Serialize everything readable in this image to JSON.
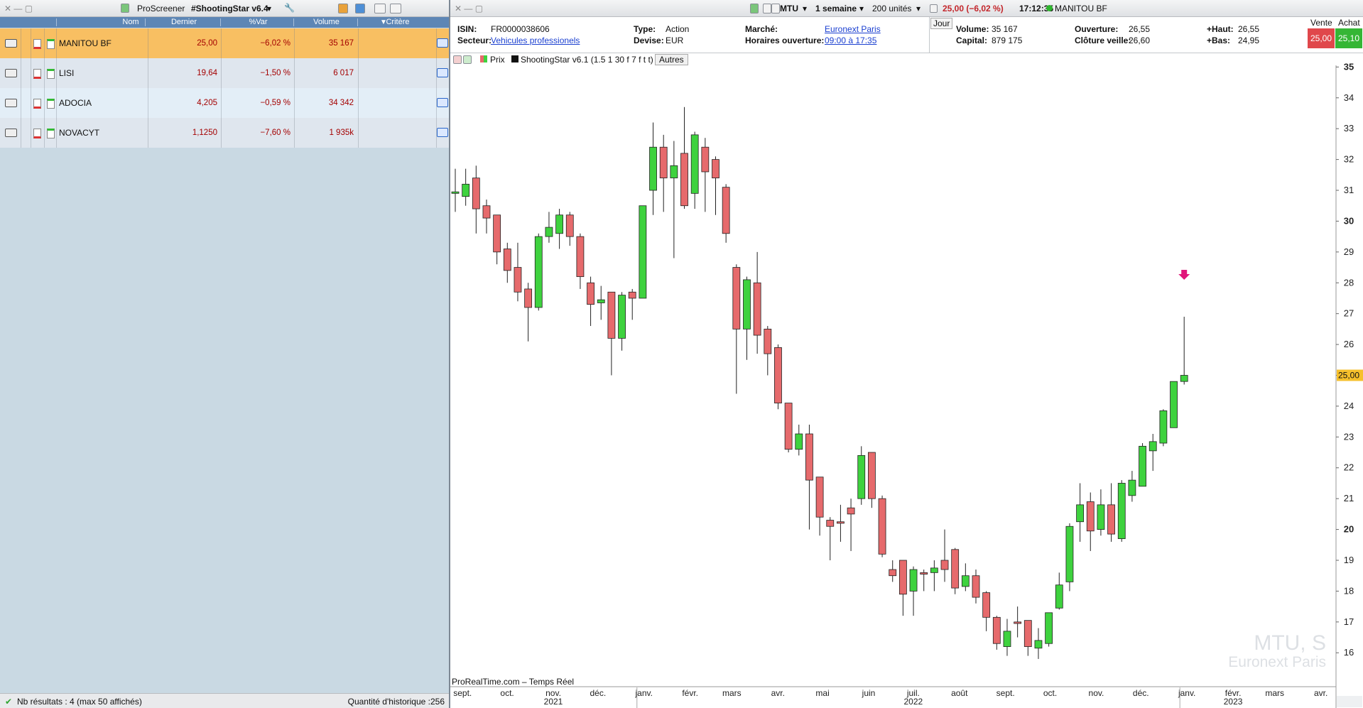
{
  "screener": {
    "toolbar": {
      "title": "ProScreener",
      "screen": "#ShootingStar v6.4"
    },
    "columns": [
      "Nom",
      "Dernier",
      "%Var",
      "Volume",
      "Critère"
    ],
    "rows": [
      [
        "MANITOU BF",
        "25,00",
        "−6,02 %",
        "35 167"
      ],
      [
        "LISI",
        "19,64",
        "−1,50 %",
        "6 017"
      ],
      [
        "ADOCIA",
        "4,205",
        "−0,59 %",
        "34 342"
      ],
      [
        "NOVACYT",
        "1,1250",
        "−7,60 %",
        "1 935k"
      ]
    ],
    "footer": {
      "results": "Nb résultats : 4 (max 50 affichés)",
      "history": "Quantité d'historique :256"
    }
  },
  "instrument": {
    "toolbar": {
      "ticker": "MTU",
      "period": "1 semaine",
      "units": "200 unités",
      "quote": "25,00 (−6,02 %)",
      "time": "17:12:35",
      "name": "MANITOU BF"
    },
    "isin_label": "ISIN:",
    "isin": "FR0000038606",
    "sector_label": "Secteur:",
    "sector": "Vehicules professionels",
    "type_label": "Type:",
    "type": "Action",
    "currency_label": "Devise:",
    "currency": "EUR",
    "market_label": "Marché:",
    "market": "Euronext Paris",
    "hours_label": "Horaires ouverture:",
    "hours": "09:00 à 17:35",
    "day_button": "Jour",
    "volume_label": "Volume:",
    "volume": "35 167",
    "capital_label": "Capital:",
    "capital": "879 175",
    "open_label": "Ouverture:",
    "open": "26,55",
    "prev_close_label": "Clôture veille:",
    "prev_close": "26,60",
    "high_label": "+Haut:",
    "high": "26,55",
    "low_label": "+Bas:",
    "low": "24,95",
    "sell_label": "Vente",
    "sell": "25,00",
    "buy_label": "Achat",
    "buy": "25,10",
    "legend": {
      "price": "Prix",
      "indicator": "ShootingStar v6.1 (1.5 1 30 f 7 f t t)",
      "others": "Autres"
    },
    "source": "ProRealTime.com – Temps Réel",
    "watermark": "MTU, S",
    "watermark_market": "Euronext Paris"
  },
  "chart_data": {
    "type": "candlestick",
    "up_color": "#3ed23e",
    "down_color": "#e66a6c",
    "ylim": [
      14.9,
      35.1
    ],
    "yticks": [
      16,
      17,
      18,
      19,
      20,
      21,
      22,
      23,
      24,
      25,
      26,
      27,
      28,
      29,
      30,
      31,
      32,
      33,
      34,
      35
    ],
    "last_price": {
      "value": 25,
      "label": "25,00"
    },
    "months": [
      "sept.",
      "oct.",
      "nov.",
      "déc.",
      "janv.",
      "févr.",
      "mars",
      "avr.",
      "mai",
      "juin",
      "juil.",
      "août",
      "sept.",
      "oct.",
      "nov.",
      "déc.",
      "janv.",
      "févr.",
      "mars",
      "avr."
    ],
    "years": [
      "2021",
      "2022",
      "2023"
    ],
    "ohlc": [
      [
        30.9,
        31.7,
        30.3,
        30.95
      ],
      [
        30.8,
        31.7,
        30.5,
        31.2
      ],
      [
        31.4,
        31.8,
        29.6,
        30.4
      ],
      [
        30.5,
        30.7,
        29.6,
        30.1
      ],
      [
        30.2,
        30.2,
        28.6,
        29.0
      ],
      [
        29.1,
        29.3,
        28.0,
        28.4
      ],
      [
        28.5,
        29.3,
        27.4,
        27.7
      ],
      [
        27.8,
        28.0,
        26.1,
        27.2
      ],
      [
        27.2,
        29.6,
        27.1,
        29.5
      ],
      [
        29.5,
        30.3,
        29.3,
        29.8
      ],
      [
        29.6,
        30.4,
        29.1,
        30.2
      ],
      [
        30.2,
        30.3,
        29.2,
        29.5
      ],
      [
        29.5,
        29.6,
        27.8,
        28.2
      ],
      [
        28.0,
        28.2,
        26.6,
        27.3
      ],
      [
        27.35,
        27.9,
        26.8,
        27.45
      ],
      [
        27.7,
        27.7,
        25.0,
        26.2
      ],
      [
        26.2,
        27.7,
        25.8,
        27.6
      ],
      [
        27.7,
        27.8,
        26.8,
        27.5
      ],
      [
        27.5,
        30.5,
        27.5,
        30.5
      ],
      [
        31.0,
        33.2,
        30.2,
        32.4
      ],
      [
        32.4,
        32.8,
        30.3,
        31.4
      ],
      [
        31.4,
        32.6,
        28.8,
        31.8
      ],
      [
        32.2,
        33.7,
        30.4,
        30.5
      ],
      [
        30.9,
        32.9,
        30.4,
        32.8
      ],
      [
        32.4,
        32.7,
        30.3,
        31.6
      ],
      [
        32.0,
        32.1,
        30.2,
        31.4
      ],
      [
        31.1,
        31.2,
        29.3,
        29.6
      ],
      [
        28.5,
        28.6,
        24.4,
        26.5
      ],
      [
        26.5,
        28.2,
        25.5,
        28.1
      ],
      [
        28.0,
        29.0,
        25.7,
        26.3
      ],
      [
        26.5,
        26.6,
        25.0,
        25.7
      ],
      [
        25.9,
        26.0,
        23.9,
        24.1
      ],
      [
        24.1,
        24.1,
        22.5,
        22.6
      ],
      [
        22.6,
        23.4,
        22.4,
        23.1
      ],
      [
        23.1,
        23.4,
        20.0,
        21.6
      ],
      [
        21.7,
        21.7,
        19.8,
        20.4
      ],
      [
        20.3,
        20.4,
        19.0,
        20.1
      ],
      [
        20.25,
        20.8,
        19.6,
        20.2
      ],
      [
        20.7,
        21.0,
        19.3,
        20.5
      ],
      [
        21.0,
        22.7,
        20.8,
        22.4
      ],
      [
        22.5,
        22.5,
        20.7,
        21.0
      ],
      [
        21.0,
        21.1,
        19.1,
        19.2
      ],
      [
        18.7,
        19.0,
        18.3,
        18.5
      ],
      [
        19.0,
        19.0,
        17.2,
        17.9
      ],
      [
        18.0,
        18.8,
        17.2,
        18.7
      ],
      [
        18.6,
        18.7,
        18.0,
        18.55
      ],
      [
        18.6,
        19.0,
        18.0,
        18.75
      ],
      [
        19.0,
        20.0,
        18.3,
        18.7
      ],
      [
        19.35,
        19.4,
        17.9,
        18.1
      ],
      [
        18.15,
        18.9,
        18.0,
        18.5
      ],
      [
        18.5,
        18.7,
        17.6,
        17.8
      ],
      [
        17.95,
        18.0,
        16.7,
        17.15
      ],
      [
        17.15,
        17.2,
        16.1,
        16.3
      ],
      [
        16.2,
        17.1,
        15.9,
        16.7
      ],
      [
        17.0,
        17.5,
        16.5,
        16.95
      ],
      [
        17.05,
        17.05,
        15.9,
        16.2
      ],
      [
        16.15,
        16.8,
        15.8,
        16.4
      ],
      [
        16.3,
        17.3,
        16.2,
        17.3
      ],
      [
        17.45,
        18.6,
        17.4,
        18.2
      ],
      [
        18.3,
        20.2,
        18.0,
        20.1
      ],
      [
        20.25,
        21.5,
        19.6,
        20.8
      ],
      [
        20.9,
        21.2,
        19.3,
        19.95
      ],
      [
        20.0,
        21.3,
        19.8,
        20.8
      ],
      [
        20.8,
        21.5,
        19.6,
        19.85
      ],
      [
        19.7,
        21.6,
        19.6,
        21.5
      ],
      [
        21.1,
        21.9,
        20.9,
        21.6
      ],
      [
        21.4,
        22.8,
        21.4,
        22.7
      ],
      [
        22.55,
        23.1,
        21.9,
        22.85
      ],
      [
        22.8,
        23.9,
        22.7,
        23.85
      ],
      [
        23.3,
        24.8,
        23.3,
        24.8
      ],
      [
        24.8,
        26.9,
        24.7,
        25.0
      ]
    ]
  }
}
